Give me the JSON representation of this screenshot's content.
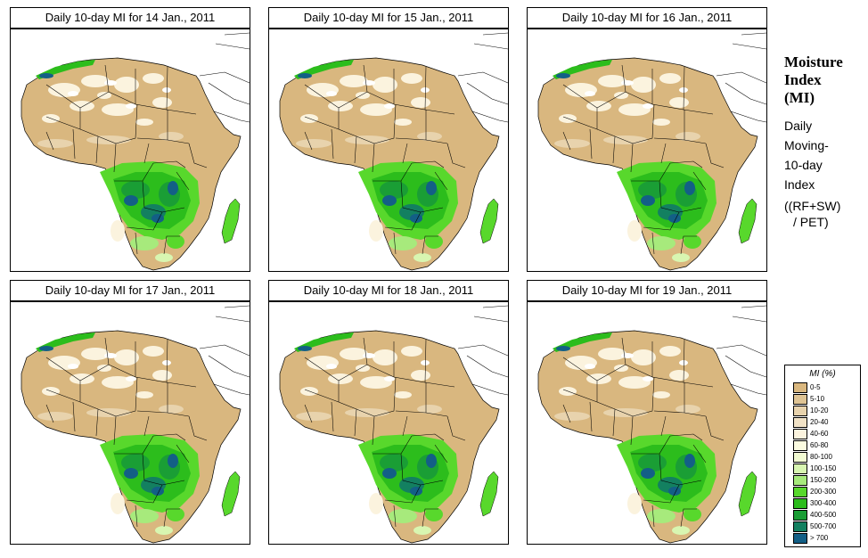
{
  "panels": [
    {
      "title": "Daily 10-day MI for  14 Jan., 2011"
    },
    {
      "title": "Daily 10-day MI for  15 Jan., 2011"
    },
    {
      "title": "Daily 10-day MI for  16 Jan., 2011"
    },
    {
      "title": "Daily 10-day MI for  17 Jan., 2011"
    },
    {
      "title": "Daily 10-day MI for  18 Jan., 2011"
    },
    {
      "title": "Daily 10-day MI for  19 Jan., 2011"
    }
  ],
  "legend": {
    "title_line1": "Moisture",
    "title_line2": "Index",
    "title_line3": "(MI)",
    "desc_line1": "Daily",
    "desc_line2": "Moving-",
    "desc_line3": "10-day",
    "desc_line4": "Index",
    "formula_line1": "((RF+SW)",
    "formula_line2": "/ PET)",
    "scale_title": "MI (%)",
    "classes": [
      {
        "label": "0-5",
        "color": "#d9b77f"
      },
      {
        "label": "5-10",
        "color": "#dfc494"
      },
      {
        "label": "10-20",
        "color": "#e8d3ad"
      },
      {
        "label": "20-40",
        "color": "#f1e2c6"
      },
      {
        "label": "40-60",
        "color": "#fbf3de"
      },
      {
        "label": "60-80",
        "color": "#fbfbe0"
      },
      {
        "label": "80-100",
        "color": "#f2fbd2"
      },
      {
        "label": "100-150",
        "color": "#d8f6b1"
      },
      {
        "label": "150-200",
        "color": "#a7ea7c"
      },
      {
        "label": "200-300",
        "color": "#58d82c"
      },
      {
        "label": "300-400",
        "color": "#2cbd1c"
      },
      {
        "label": "400-500",
        "color": "#1a9e35"
      },
      {
        "label": "500-700",
        "color": "#138060"
      },
      {
        "label": "> 700",
        "color": "#135f86"
      }
    ]
  }
}
